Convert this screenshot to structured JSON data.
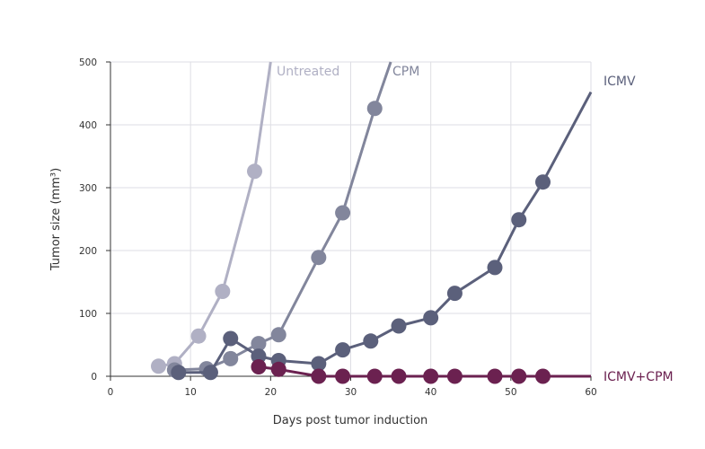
{
  "chart_data": {
    "type": "line",
    "xlabel": "Days post tumor induction",
    "ylabel": "Tumor size (mm³)",
    "xlim": [
      0,
      60
    ],
    "ylim": [
      0,
      500
    ],
    "xticks": [
      0,
      10,
      20,
      30,
      40,
      50,
      60
    ],
    "yticks": [
      0,
      100,
      200,
      300,
      400,
      500
    ],
    "grid": true,
    "legend": "inline-labels",
    "series": [
      {
        "name": "Untreated",
        "color": "#b0b0c4",
        "x": [
          6,
          8,
          11,
          14,
          18
        ],
        "y": [
          16,
          20,
          64,
          135,
          326
        ],
        "line_extends_to": [
          20,
          500
        ]
      },
      {
        "name": "CPM",
        "color": "#82869c",
        "x": [
          8,
          12,
          15,
          18.5,
          21,
          26,
          29,
          33
        ],
        "y": [
          10,
          12,
          28,
          52,
          66,
          189,
          260,
          426
        ],
        "line_extends_to": [
          35,
          500
        ]
      },
      {
        "name": "ICMV",
        "color": "#5b607b",
        "x": [
          8.5,
          12.5,
          15,
          18.5,
          21,
          26,
          29,
          32.5,
          36,
          40,
          43,
          48,
          51,
          54
        ],
        "y": [
          6,
          6,
          60,
          32,
          25,
          20,
          42,
          56,
          80,
          93,
          132,
          173,
          249,
          309
        ],
        "line_extends_to": [
          60,
          452
        ]
      },
      {
        "name": "ICMV+CPM",
        "color": "#6b2150",
        "x": [
          18.5,
          21,
          26,
          29,
          33,
          36,
          40,
          43,
          48,
          51,
          54
        ],
        "y": [
          15,
          11,
          0,
          0,
          0,
          0,
          0,
          0,
          0,
          0,
          0
        ],
        "line_extends_to": [
          60,
          0
        ]
      }
    ]
  }
}
